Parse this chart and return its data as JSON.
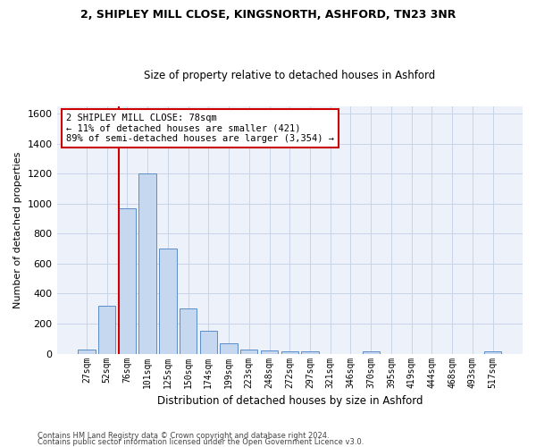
{
  "title1": "2, SHIPLEY MILL CLOSE, KINGSNORTH, ASHFORD, TN23 3NR",
  "title2": "Size of property relative to detached houses in Ashford",
  "xlabel": "Distribution of detached houses by size in Ashford",
  "ylabel": "Number of detached properties",
  "bar_color": "#c5d8f0",
  "bar_edge_color": "#5b8dc8",
  "grid_color": "#c8d4e8",
  "background_color": "#edf2fa",
  "property_line_color": "#cc0000",
  "annotation_box_color": "#cc0000",
  "bins": [
    "27sqm",
    "52sqm",
    "76sqm",
    "101sqm",
    "125sqm",
    "150sqm",
    "174sqm",
    "199sqm",
    "223sqm",
    "248sqm",
    "272sqm",
    "297sqm",
    "321sqm",
    "346sqm",
    "370sqm",
    "395sqm",
    "419sqm",
    "444sqm",
    "468sqm",
    "493sqm",
    "517sqm"
  ],
  "values": [
    30,
    320,
    970,
    1200,
    700,
    300,
    150,
    70,
    30,
    20,
    15,
    15,
    0,
    0,
    15,
    0,
    0,
    0,
    0,
    0,
    15
  ],
  "property_bin_index": 2,
  "annotation_line1": "2 SHIPLEY MILL CLOSE: 78sqm",
  "annotation_line2": "← 11% of detached houses are smaller (421)",
  "annotation_line3": "89% of semi-detached houses are larger (3,354) →",
  "footer1": "Contains HM Land Registry data © Crown copyright and database right 2024.",
  "footer2": "Contains public sector information licensed under the Open Government Licence v3.0.",
  "ylim": [
    0,
    1650
  ],
  "yticks": [
    0,
    200,
    400,
    600,
    800,
    1000,
    1200,
    1400,
    1600
  ]
}
